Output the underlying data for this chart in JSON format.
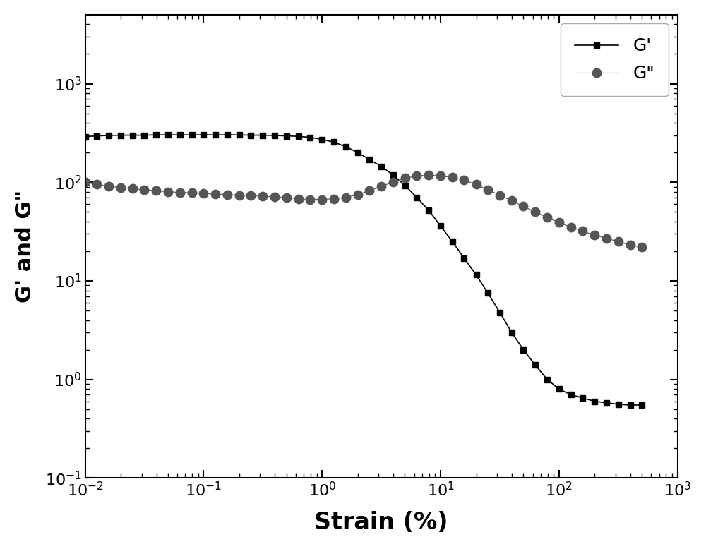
{
  "title": "",
  "xlabel": "Strain (%)",
  "ylabel": "G' and G\"",
  "xlim": [
    0.01,
    1000
  ],
  "ylim": [
    0.1,
    5000
  ],
  "background_color": "#ffffff",
  "line_color_Gprime": "#000000",
  "line_color_Gdprime": "#555555",
  "marker_Gprime": "s",
  "marker_Gdprime": "o",
  "legend_labels": [
    "G'",
    "G\""
  ],
  "Gprime_strain": [
    0.01,
    0.0126,
    0.0158,
    0.02,
    0.0251,
    0.0316,
    0.0398,
    0.0501,
    0.0631,
    0.0794,
    0.1,
    0.126,
    0.158,
    0.2,
    0.251,
    0.316,
    0.398,
    0.501,
    0.631,
    0.794,
    1.0,
    1.26,
    1.58,
    2.0,
    2.51,
    3.16,
    3.98,
    5.01,
    6.31,
    7.94,
    10.0,
    12.6,
    15.8,
    20.0,
    25.1,
    31.6,
    39.8,
    50.1,
    63.1,
    79.4,
    100.0,
    126.0,
    158.0,
    200.0,
    251.0,
    316.0,
    398.0,
    500.0
  ],
  "Gprime_values": [
    290,
    295,
    298,
    300,
    300,
    300,
    302,
    302,
    302,
    302,
    302,
    302,
    302,
    302,
    300,
    300,
    298,
    295,
    292,
    285,
    272,
    255,
    230,
    200,
    170,
    145,
    118,
    93,
    70,
    52,
    36,
    25,
    17,
    11.5,
    7.5,
    4.8,
    3.0,
    2.0,
    1.4,
    1.0,
    0.8,
    0.7,
    0.65,
    0.6,
    0.58,
    0.56,
    0.55,
    0.55
  ],
  "Gdprime_strain": [
    0.01,
    0.0126,
    0.0158,
    0.02,
    0.0251,
    0.0316,
    0.0398,
    0.0501,
    0.0631,
    0.0794,
    0.1,
    0.126,
    0.158,
    0.2,
    0.251,
    0.316,
    0.398,
    0.501,
    0.631,
    0.794,
    1.0,
    1.26,
    1.58,
    2.0,
    2.51,
    3.16,
    3.98,
    5.01,
    6.31,
    7.94,
    10.0,
    12.6,
    15.8,
    20.0,
    25.1,
    31.6,
    39.8,
    50.1,
    63.1,
    79.4,
    100.0,
    126.0,
    158.0,
    200.0,
    251.0,
    316.0,
    398.0,
    500.0
  ],
  "Gdprime_values": [
    100,
    95,
    91,
    88,
    86,
    84,
    82,
    80,
    79,
    78,
    77,
    76,
    75,
    74,
    73,
    72,
    71,
    70,
    68,
    67,
    67,
    68,
    70,
    75,
    82,
    91,
    100,
    110,
    116,
    118,
    116,
    112,
    105,
    95,
    84,
    74,
    65,
    57,
    50,
    44,
    39,
    35,
    32,
    29,
    27,
    25,
    23,
    22
  ]
}
